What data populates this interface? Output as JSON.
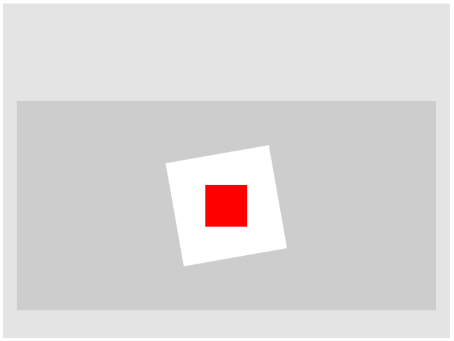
{
  "colors": {
    "frame_background": "#e4e4e4",
    "stage_background": "#cdcdcd",
    "card": "#ffffff",
    "square": "#ff0000"
  }
}
